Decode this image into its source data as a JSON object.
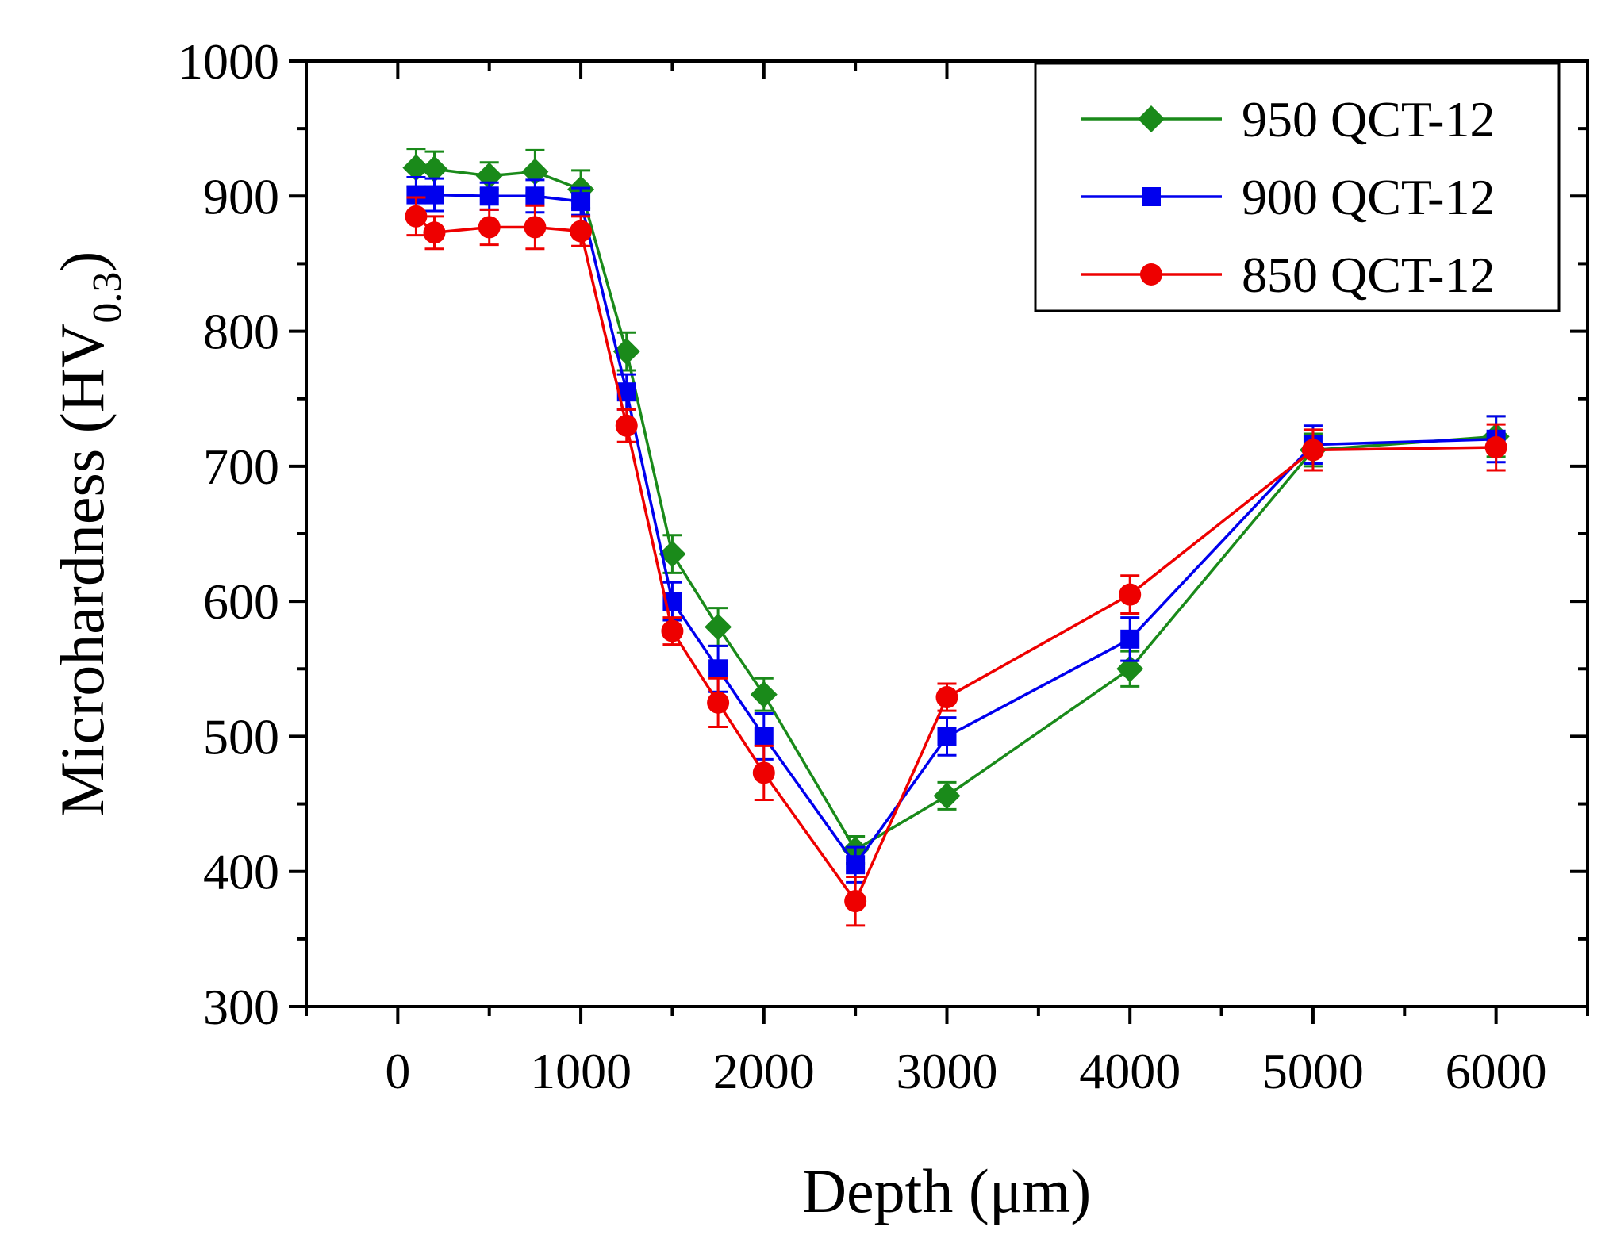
{
  "chart_data": {
    "type": "line",
    "xlabel": "Depth (μm)",
    "ylabel": {
      "main": "Microhardness (HV",
      "subscript": "0.3",
      "close": ")"
    },
    "xlim": [
      -500,
      6500
    ],
    "ylim": [
      300,
      1000
    ],
    "xticks": [
      0,
      1000,
      2000,
      3000,
      4000,
      5000,
      6000
    ],
    "yticks": [
      300,
      400,
      500,
      600,
      700,
      800,
      900,
      1000
    ],
    "legend_position": "top-right",
    "grid": false,
    "x": [
      100,
      200,
      500,
      750,
      1000,
      1250,
      1500,
      1750,
      2000,
      2500,
      3000,
      4000,
      5000,
      6000
    ],
    "series": [
      {
        "name": "950 QCT-12",
        "color": "#1a8a1a",
        "marker": "diamond",
        "values": [
          921,
          920,
          915,
          918,
          905,
          785,
          635,
          581,
          531,
          416,
          456,
          550,
          712,
          722
        ],
        "errors": [
          14,
          13,
          10,
          16,
          14,
          14,
          14,
          14,
          12,
          10,
          10,
          13,
          12,
          15
        ]
      },
      {
        "name": "900 QCT-12",
        "color": "#0000ee",
        "marker": "square",
        "values": [
          901,
          901,
          900,
          900,
          896,
          755,
          600,
          550,
          500,
          405,
          500,
          572,
          716,
          720
        ],
        "errors": [
          13,
          12,
          10,
          12,
          10,
          13,
          14,
          17,
          17,
          13,
          14,
          16,
          14,
          17
        ]
      },
      {
        "name": "850 QCT-12",
        "color": "#ee0000",
        "marker": "circle",
        "values": [
          885,
          873,
          877,
          877,
          874,
          730,
          578,
          525,
          473,
          378,
          529,
          605,
          712,
          714
        ],
        "errors": [
          14,
          12,
          13,
          16,
          11,
          12,
          10,
          18,
          20,
          18,
          10,
          14,
          15,
          17
        ]
      }
    ]
  }
}
